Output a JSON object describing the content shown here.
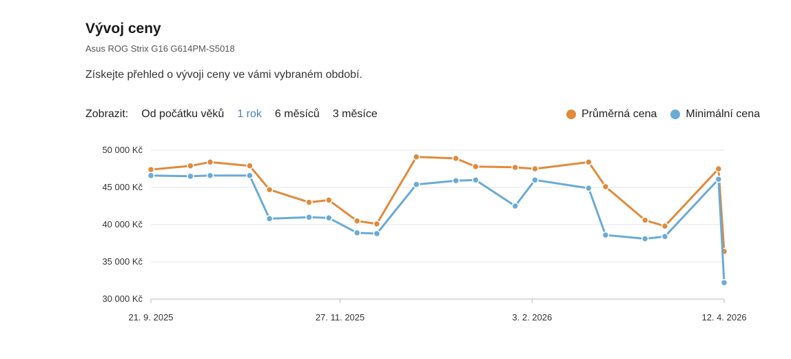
{
  "title": "Vývoj ceny",
  "subtitle": "Asus ROG Strix G16 G614PM-S5018",
  "description": "Získejte přehled o vývoji ceny ve vámi vybraném období.",
  "filters": {
    "label": "Zobrazit:",
    "options": [
      "Od počátku věků",
      "1 rok",
      "6 měsíců",
      "3 měsíce"
    ],
    "active": "1 rok"
  },
  "colors": {
    "average": "#e08a3c",
    "minimum": "#6aaad6",
    "grid": "#e4e4e4",
    "axis": "#bbbbbb"
  },
  "legend": {
    "average": "Průměrná cena",
    "minimum": "Minimální cena"
  },
  "chart_data": {
    "type": "line",
    "y_tick_labels": [
      "50 000 Kč",
      "45 000 Kč",
      "40 000 Kč",
      "35 000 Kč",
      "30 000 Kč"
    ],
    "y_ticks": [
      50000,
      45000,
      40000,
      35000,
      30000
    ],
    "ylim": [
      30000,
      50000
    ],
    "x_tick_labels": [
      "21. 9. 2025",
      "27. 11. 2025",
      "3. 2. 2026",
      "12. 4. 2026"
    ],
    "x_ticks": [
      "2025-09-21",
      "2025-11-27",
      "2026-02-03",
      "2026-04-12"
    ],
    "xlim": [
      "2025-09-21",
      "2026-04-12"
    ],
    "grid": true,
    "legend_position": "top-right",
    "series": [
      {
        "name": "Průměrná cena",
        "color_key": "average",
        "x": [
          "2025-09-21",
          "2025-10-05",
          "2025-10-12",
          "2025-10-26",
          "2025-11-02",
          "2025-11-16",
          "2025-11-23",
          "2025-12-03",
          "2025-12-10",
          "2025-12-24",
          "2026-01-07",
          "2026-01-14",
          "2026-01-28",
          "2026-02-04",
          "2026-02-23",
          "2026-03-01",
          "2026-03-15",
          "2026-03-22",
          "2026-04-10",
          "2026-04-12"
        ],
        "values": [
          47400,
          47900,
          48400,
          47900,
          44700,
          43000,
          43300,
          40500,
          40100,
          49100,
          48900,
          47800,
          47700,
          47500,
          48400,
          45100,
          40600,
          39800,
          47500,
          36400
        ]
      },
      {
        "name": "Minimální cena",
        "color_key": "minimum",
        "x": [
          "2025-09-21",
          "2025-10-05",
          "2025-10-12",
          "2025-10-26",
          "2025-11-02",
          "2025-11-16",
          "2025-11-23",
          "2025-12-03",
          "2025-12-10",
          "2025-12-24",
          "2026-01-07",
          "2026-01-14",
          "2026-01-28",
          "2026-02-04",
          "2026-02-23",
          "2026-03-01",
          "2026-03-15",
          "2026-03-22",
          "2026-04-10",
          "2026-04-12"
        ],
        "values": [
          46600,
          46500,
          46600,
          46600,
          40800,
          41000,
          40900,
          38900,
          38800,
          45400,
          45900,
          46000,
          42500,
          46000,
          44900,
          38600,
          38100,
          38400,
          46100,
          32200
        ]
      }
    ]
  }
}
